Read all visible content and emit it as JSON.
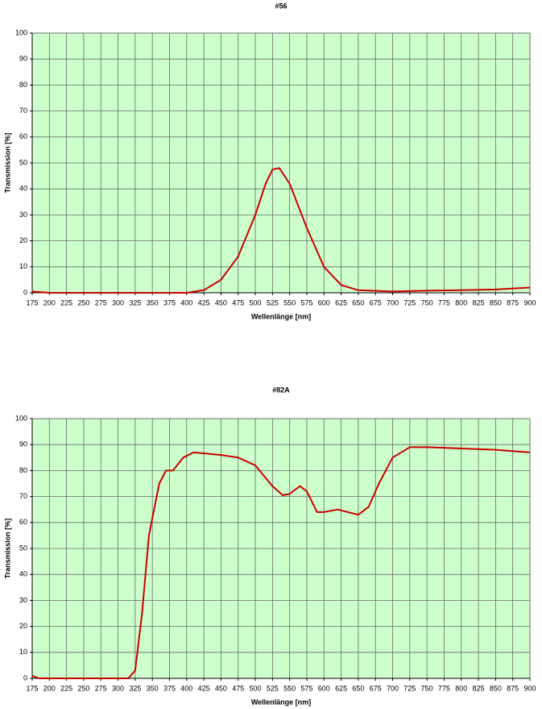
{
  "chart_data": [
    {
      "type": "line",
      "title": "#56",
      "x_label": "Wellenlänge [nm]",
      "y_label": "Transmission [%]",
      "x": [
        175,
        200,
        250,
        300,
        350,
        400,
        425,
        450,
        475,
        500,
        515,
        525,
        535,
        550,
        575,
        600,
        625,
        650,
        700,
        750,
        800,
        850,
        900
      ],
      "values": [
        0.5,
        0,
        0,
        0,
        0,
        0,
        1,
        5,
        14,
        30,
        42,
        47.5,
        48,
        42,
        25,
        10,
        3,
        1,
        0.5,
        0.8,
        1,
        1.3,
        2
      ],
      "color": "#cc0000",
      "background": "#ccffcc",
      "grid": true,
      "xlim": [
        175,
        900
      ],
      "xticks": [
        175,
        200,
        225,
        250,
        275,
        300,
        325,
        350,
        375,
        400,
        425,
        450,
        475,
        500,
        525,
        550,
        575,
        600,
        625,
        650,
        675,
        700,
        725,
        750,
        775,
        800,
        825,
        850,
        875,
        900
      ],
      "ylim": [
        0,
        100
      ],
      "yticks": [
        0,
        10,
        20,
        30,
        40,
        50,
        60,
        70,
        80,
        90,
        100
      ]
    },
    {
      "type": "line",
      "title": "#82A",
      "x_label": "Wellenlänge [nm]",
      "y_label": "Transmission [%]",
      "x": [
        175,
        185,
        200,
        250,
        300,
        315,
        325,
        335,
        345,
        360,
        370,
        380,
        395,
        410,
        450,
        475,
        500,
        525,
        540,
        550,
        565,
        575,
        590,
        600,
        620,
        650,
        665,
        680,
        700,
        725,
        750,
        800,
        850,
        875,
        900
      ],
      "values": [
        1,
        0,
        0,
        0,
        0,
        0,
        3,
        25,
        55,
        75,
        80,
        80,
        85,
        87,
        86,
        85,
        82,
        74,
        70.5,
        71,
        74,
        72,
        64,
        64,
        65,
        63,
        66,
        75,
        85,
        89,
        89,
        88.5,
        88,
        87.5,
        87
      ],
      "color": "#cc0000",
      "background": "#ccffcc",
      "grid": true,
      "xlim": [
        175,
        900
      ],
      "xticks": [
        175,
        200,
        225,
        250,
        275,
        300,
        325,
        350,
        375,
        400,
        425,
        450,
        475,
        500,
        525,
        550,
        575,
        600,
        625,
        650,
        675,
        700,
        725,
        750,
        775,
        800,
        825,
        850,
        875,
        900
      ],
      "ylim": [
        0,
        100
      ],
      "yticks": [
        0,
        10,
        20,
        30,
        40,
        50,
        60,
        70,
        80,
        90,
        100
      ]
    }
  ]
}
